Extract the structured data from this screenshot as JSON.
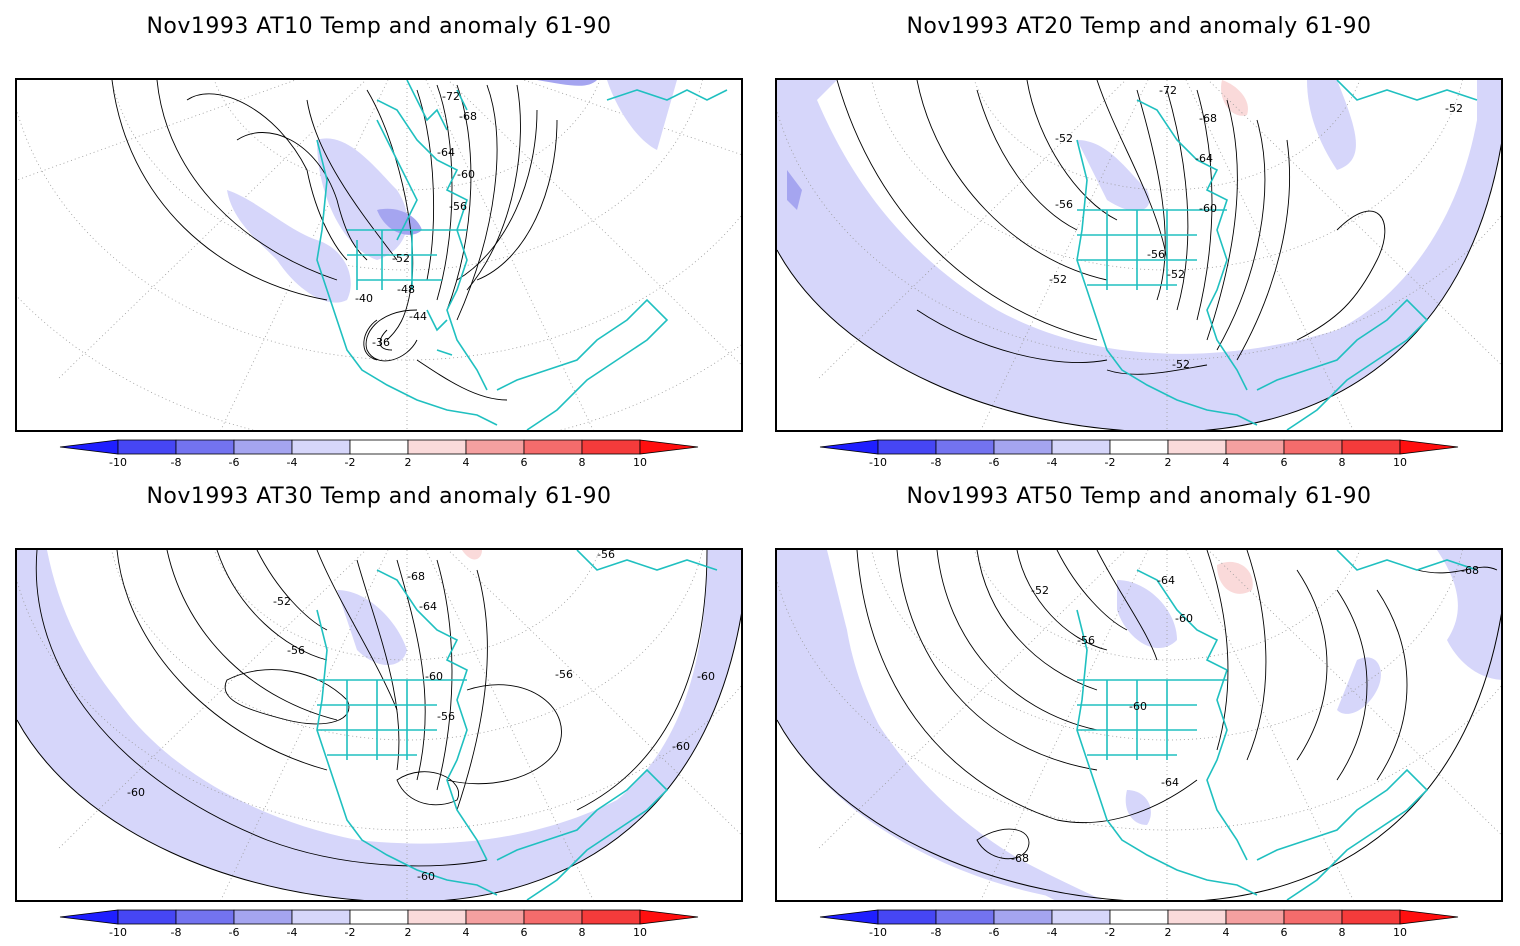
{
  "panels": [
    {
      "title": "Nov1993 AT10 Temp and anomaly 61-90",
      "contour_labels": [
        "-72",
        "-68",
        "-64",
        "-60",
        "-56",
        "-52",
        "-48",
        "-44",
        "-40",
        "-36"
      ],
      "anomaly_level": "weak-negative"
    },
    {
      "title": "Nov1993 AT20 Temp and anomaly 61-90",
      "contour_labels": [
        "-72",
        "-68",
        "-64",
        "-60",
        "-56",
        "-52",
        "-56",
        "-52",
        "-52",
        "-52",
        "-52"
      ],
      "anomaly_level": "weak-negative"
    },
    {
      "title": "Nov1993 AT30 Temp and anomaly 61-90",
      "contour_labels": [
        "-68",
        "-64",
        "-60",
        "-56",
        "-52",
        "-56",
        "-56",
        "-60",
        "-60",
        "-60",
        "-60",
        "-56"
      ],
      "anomaly_level": "weak-negative"
    },
    {
      "title": "Nov1993 AT50 Temp and anomaly 61-90",
      "contour_labels": [
        "-64",
        "-60",
        "-56",
        "-52",
        "-60",
        "-64",
        "-68",
        "-68"
      ],
      "anomaly_level": "weak-negative"
    }
  ],
  "colorbar": {
    "ticks": [
      "-10",
      "-8",
      "-6",
      "-4",
      "-2",
      "2",
      "4",
      "6",
      "8",
      "10"
    ],
    "colors": [
      "#1f1fff",
      "#4646f5",
      "#7373f0",
      "#a5a5f0",
      "#d6d6fa",
      "#ffffff",
      "#fadada",
      "#f5a0a0",
      "#f56c6c",
      "#f53b3b",
      "#ff0f0f"
    ]
  },
  "colors": {
    "coastline": "#20c0c0",
    "neg_anomaly": "#d6d6fa",
    "neg_anomaly_strong": "#a5a5f0",
    "pos_anomaly": "#fadada"
  }
}
